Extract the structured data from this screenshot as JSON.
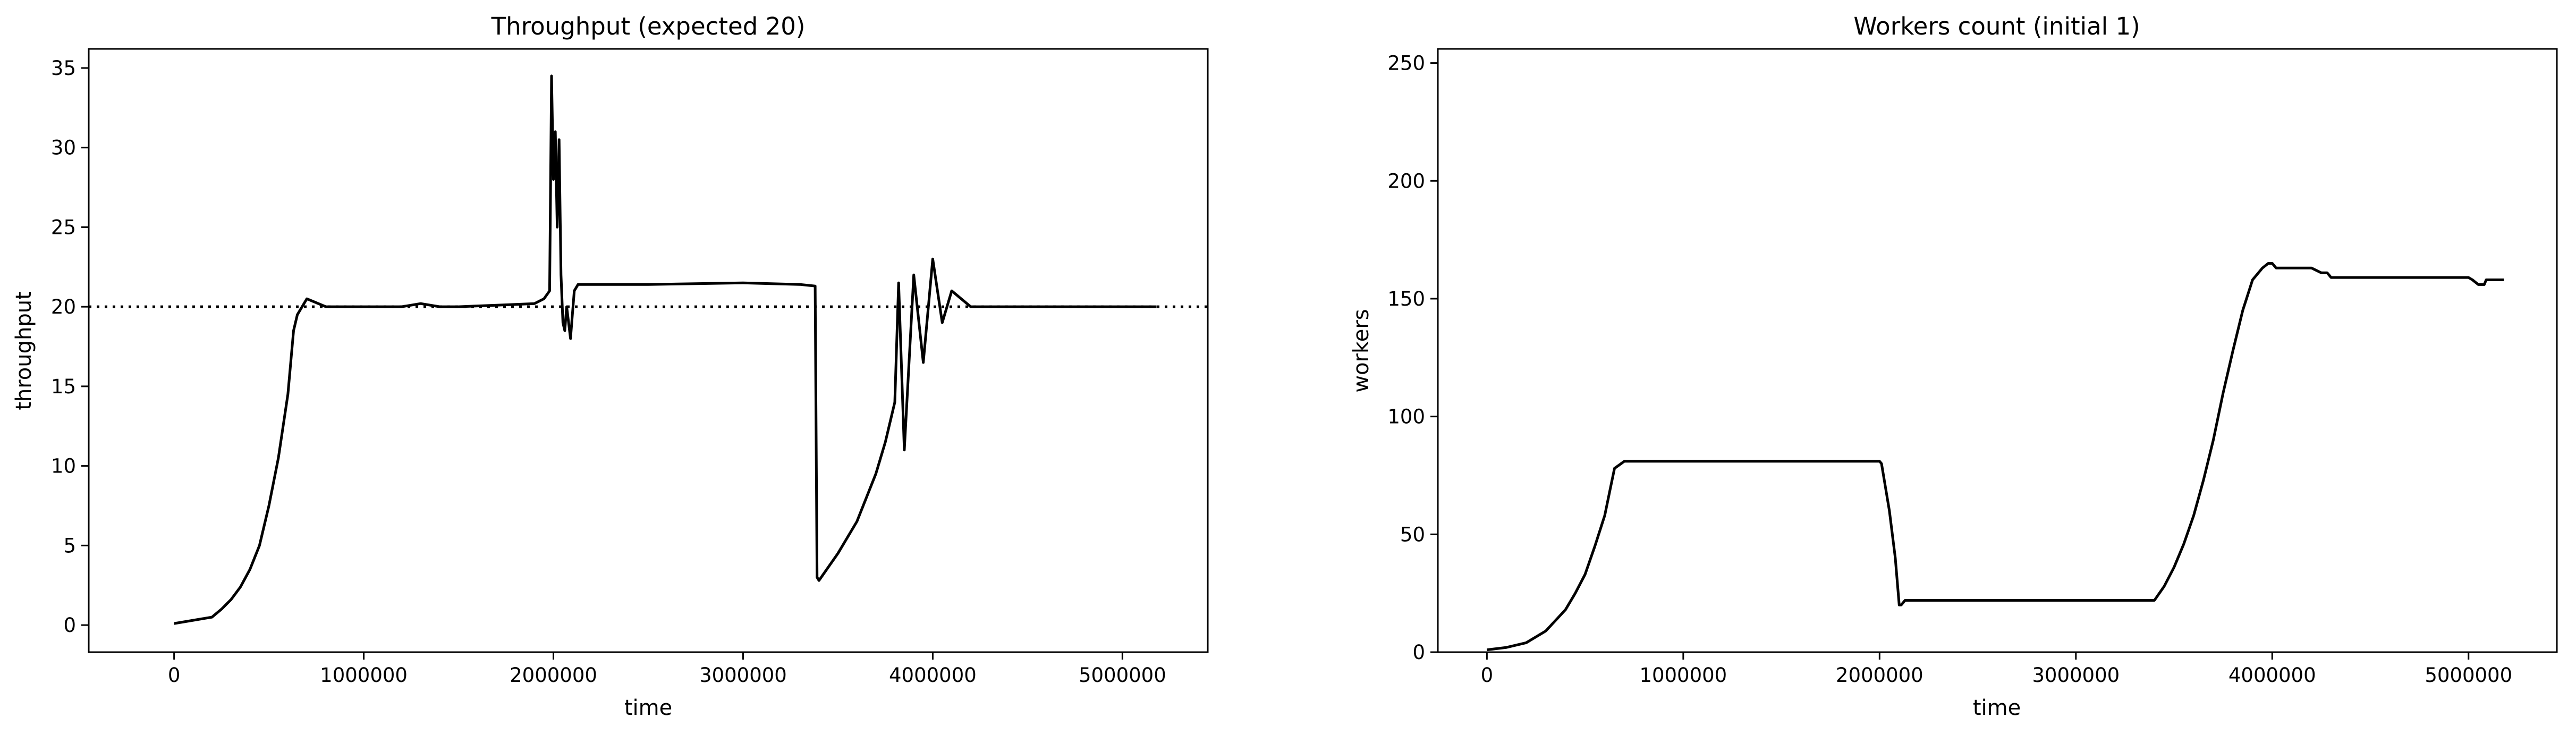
{
  "chart_data": [
    {
      "type": "line",
      "title": "Throughput (expected 20)",
      "xlabel": "time",
      "ylabel": "throughput",
      "xlim": [
        -450000,
        5450000
      ],
      "ylim": [
        -1.7,
        36.2
      ],
      "xticks": [
        0,
        1000000,
        2000000,
        3000000,
        4000000,
        5000000
      ],
      "xtick_labels": [
        "0",
        "1000000",
        "2000000",
        "3000000",
        "4000000",
        "5000000"
      ],
      "yticks": [
        0,
        5,
        10,
        15,
        20,
        25,
        30,
        35
      ],
      "ytick_labels": [
        "0",
        "5",
        "10",
        "15",
        "20",
        "25",
        "30",
        "35"
      ],
      "grid": false,
      "color": "#000000",
      "reference_line": {
        "y": 20,
        "style": "dotted",
        "color": "#000000"
      },
      "series": [
        {
          "x": [
            0,
            100000,
            200000,
            250000,
            300000,
            350000,
            400000,
            450000,
            500000,
            550000,
            600000,
            630000,
            650000,
            700000,
            800000,
            1000000,
            1200000,
            1300000,
            1400000,
            1500000,
            1700000,
            1900000,
            1950000,
            1980000,
            1990000,
            2000000,
            2010000,
            2020000,
            2030000,
            2040000,
            2050000,
            2060000,
            2070000,
            2080000,
            2090000,
            2100000,
            2110000,
            2130000,
            2200000,
            2500000,
            3000000,
            3300000,
            3380000,
            3390000,
            3400000,
            3500000,
            3600000,
            3700000,
            3750000,
            3800000,
            3820000,
            3850000,
            3900000,
            3950000,
            4000000,
            4050000,
            4100000,
            4200000,
            4300000,
            4500000,
            4700000,
            4900000,
            5000000,
            5100000,
            5180000
          ],
          "y": [
            0.1,
            0.3,
            0.5,
            1.0,
            1.6,
            2.4,
            3.5,
            5.0,
            7.5,
            10.5,
            14.5,
            18.5,
            19.5,
            20.5,
            20.0,
            20.0,
            20.0,
            20.2,
            20.0,
            20.0,
            20.1,
            20.2,
            20.5,
            21.0,
            34.5,
            28.0,
            31.0,
            25.0,
            30.5,
            22.0,
            19.0,
            18.5,
            20.0,
            19.0,
            18.0,
            19.5,
            21.0,
            21.4,
            21.4,
            21.4,
            21.5,
            21.4,
            21.3,
            3.0,
            2.8,
            4.5,
            6.5,
            9.5,
            11.5,
            14.0,
            21.5,
            11.0,
            22.0,
            16.5,
            23.0,
            19.0,
            21.0,
            20.0,
            20.0,
            20.0,
            20.0,
            20.0,
            20.0,
            20.0,
            20.0
          ]
        }
      ]
    },
    {
      "type": "line",
      "title": "Workers count (initial 1)",
      "xlabel": "time",
      "ylabel": "workers",
      "xlim": [
        -250000,
        5450000
      ],
      "ylim": [
        0,
        256
      ],
      "xticks": [
        0,
        1000000,
        2000000,
        3000000,
        4000000,
        5000000
      ],
      "xtick_labels": [
        "0",
        "1000000",
        "2000000",
        "3000000",
        "4000000",
        "5000000"
      ],
      "yticks": [
        0,
        50,
        100,
        150,
        200,
        250
      ],
      "ytick_labels": [
        "0",
        "50",
        "100",
        "150",
        "200",
        "250"
      ],
      "grid": false,
      "color": "#000000",
      "series": [
        {
          "x": [
            0,
            100000,
            200000,
            300000,
            400000,
            450000,
            500000,
            550000,
            600000,
            630000,
            650000,
            700000,
            1000000,
            1500000,
            2000000,
            2010000,
            2050000,
            2080000,
            2100000,
            2110000,
            2130000,
            2500000,
            3000000,
            3400000,
            3450000,
            3500000,
            3550000,
            3600000,
            3650000,
            3700000,
            3750000,
            3800000,
            3850000,
            3900000,
            3950000,
            3980000,
            4000000,
            4020000,
            4050000,
            4100000,
            4200000,
            4250000,
            4280000,
            4300000,
            4500000,
            4800000,
            5000000,
            5020000,
            5050000,
            5080000,
            5090000,
            5100000,
            5180000
          ],
          "y": [
            1,
            2,
            4,
            9,
            18,
            25,
            33,
            45,
            58,
            70,
            78,
            81,
            81,
            81,
            81,
            80,
            60,
            40,
            20,
            20,
            22,
            22,
            22,
            22,
            28,
            36,
            46,
            58,
            73,
            90,
            110,
            128,
            145,
            158,
            163,
            165,
            165,
            163,
            163,
            163,
            163,
            161,
            161,
            159,
            159,
            159,
            159,
            158,
            156,
            156,
            158,
            158,
            158
          ]
        }
      ]
    }
  ]
}
